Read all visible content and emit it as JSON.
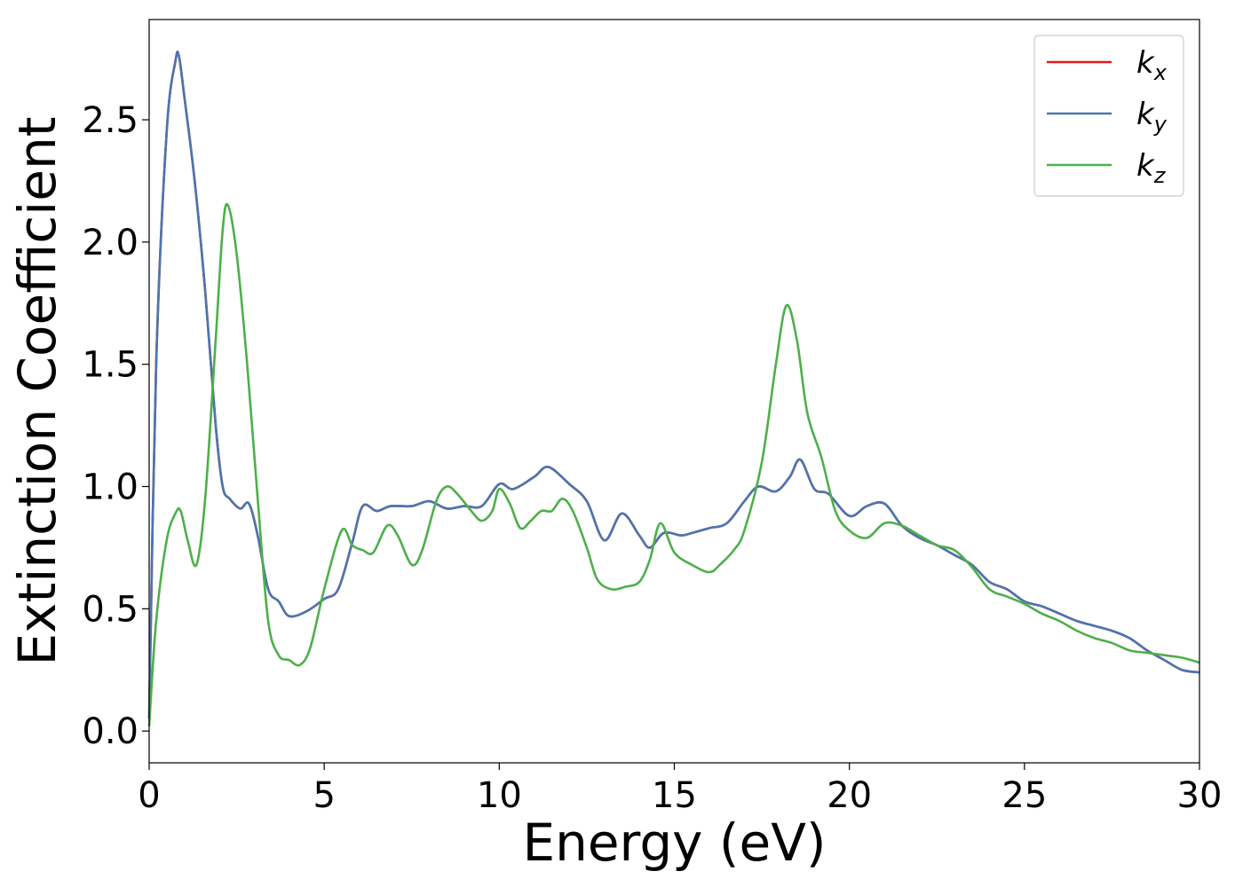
{
  "chart_data": {
    "type": "line",
    "xlabel": "Energy (eV)",
    "ylabel": "Extinction Coefficient",
    "xlim": [
      0,
      30
    ],
    "ylim": [
      -0.13,
      2.91
    ],
    "xticks": [
      0,
      5,
      10,
      15,
      20,
      25,
      30
    ],
    "xtick_labels": [
      "0",
      "5",
      "10",
      "15",
      "20",
      "25",
      "30"
    ],
    "yticks": [
      0.0,
      0.5,
      1.0,
      1.5,
      2.0,
      2.5
    ],
    "ytick_labels": [
      "0.0",
      "0.5",
      "1.0",
      "1.5",
      "2.0",
      "2.5"
    ],
    "grid": false,
    "legend_position": "top-right",
    "series": [
      {
        "name": "k_x",
        "label_main": "k",
        "label_sub": "x",
        "color": "#e41a1c",
        "points": [
          [
            0,
            0.05
          ],
          [
            0.2,
            1.5
          ],
          [
            0.5,
            2.45
          ],
          [
            0.75,
            2.74
          ],
          [
            0.85,
            2.76
          ],
          [
            1.0,
            2.6
          ],
          [
            1.3,
            2.25
          ],
          [
            1.6,
            1.8
          ],
          [
            1.9,
            1.25
          ],
          [
            2.1,
            1.0
          ],
          [
            2.3,
            0.95
          ],
          [
            2.6,
            0.91
          ],
          [
            2.85,
            0.93
          ],
          [
            3.1,
            0.8
          ],
          [
            3.4,
            0.58
          ],
          [
            3.7,
            0.53
          ],
          [
            4.0,
            0.47
          ],
          [
            4.5,
            0.49
          ],
          [
            5.0,
            0.54
          ],
          [
            5.4,
            0.58
          ],
          [
            5.8,
            0.77
          ],
          [
            6.1,
            0.92
          ],
          [
            6.5,
            0.9
          ],
          [
            6.9,
            0.92
          ],
          [
            7.5,
            0.92
          ],
          [
            8.0,
            0.94
          ],
          [
            8.5,
            0.91
          ],
          [
            9.0,
            0.92
          ],
          [
            9.5,
            0.92
          ],
          [
            10.0,
            1.01
          ],
          [
            10.4,
            0.99
          ],
          [
            11.0,
            1.04
          ],
          [
            11.4,
            1.08
          ],
          [
            12.0,
            1.01
          ],
          [
            12.5,
            0.94
          ],
          [
            13.0,
            0.78
          ],
          [
            13.5,
            0.89
          ],
          [
            14.0,
            0.8
          ],
          [
            14.3,
            0.75
          ],
          [
            14.7,
            0.81
          ],
          [
            15.2,
            0.8
          ],
          [
            15.5,
            0.81
          ],
          [
            16.0,
            0.83
          ],
          [
            16.5,
            0.85
          ],
          [
            17.0,
            0.94
          ],
          [
            17.4,
            1.0
          ],
          [
            17.9,
            0.98
          ],
          [
            18.3,
            1.04
          ],
          [
            18.6,
            1.11
          ],
          [
            19.0,
            0.99
          ],
          [
            19.4,
            0.97
          ],
          [
            20.0,
            0.88
          ],
          [
            20.5,
            0.92
          ],
          [
            21.0,
            0.93
          ],
          [
            21.5,
            0.84
          ],
          [
            22.0,
            0.79
          ],
          [
            22.5,
            0.76
          ],
          [
            23.0,
            0.72
          ],
          [
            23.5,
            0.68
          ],
          [
            24.0,
            0.61
          ],
          [
            24.5,
            0.58
          ],
          [
            25.0,
            0.53
          ],
          [
            25.5,
            0.51
          ],
          [
            26.0,
            0.48
          ],
          [
            26.5,
            0.45
          ],
          [
            27.0,
            0.43
          ],
          [
            27.5,
            0.41
          ],
          [
            28.0,
            0.38
          ],
          [
            28.5,
            0.33
          ],
          [
            29.0,
            0.29
          ],
          [
            29.5,
            0.25
          ],
          [
            30.0,
            0.24
          ]
        ]
      },
      {
        "name": "k_y",
        "label_main": "k",
        "label_sub": "y",
        "color": "#4a76b0",
        "points": [
          [
            0,
            0.05
          ],
          [
            0.2,
            1.5
          ],
          [
            0.5,
            2.45
          ],
          [
            0.75,
            2.74
          ],
          [
            0.85,
            2.76
          ],
          [
            1.0,
            2.6
          ],
          [
            1.3,
            2.25
          ],
          [
            1.6,
            1.8
          ],
          [
            1.9,
            1.25
          ],
          [
            2.1,
            1.0
          ],
          [
            2.3,
            0.95
          ],
          [
            2.6,
            0.91
          ],
          [
            2.85,
            0.93
          ],
          [
            3.1,
            0.8
          ],
          [
            3.4,
            0.58
          ],
          [
            3.7,
            0.53
          ],
          [
            4.0,
            0.47
          ],
          [
            4.5,
            0.49
          ],
          [
            5.0,
            0.54
          ],
          [
            5.4,
            0.58
          ],
          [
            5.8,
            0.77
          ],
          [
            6.1,
            0.92
          ],
          [
            6.5,
            0.9
          ],
          [
            6.9,
            0.92
          ],
          [
            7.5,
            0.92
          ],
          [
            8.0,
            0.94
          ],
          [
            8.5,
            0.91
          ],
          [
            9.0,
            0.92
          ],
          [
            9.5,
            0.92
          ],
          [
            10.0,
            1.01
          ],
          [
            10.4,
            0.99
          ],
          [
            11.0,
            1.04
          ],
          [
            11.4,
            1.08
          ],
          [
            12.0,
            1.01
          ],
          [
            12.5,
            0.94
          ],
          [
            13.0,
            0.78
          ],
          [
            13.5,
            0.89
          ],
          [
            14.0,
            0.8
          ],
          [
            14.3,
            0.75
          ],
          [
            14.7,
            0.81
          ],
          [
            15.2,
            0.8
          ],
          [
            15.5,
            0.81
          ],
          [
            16.0,
            0.83
          ],
          [
            16.5,
            0.85
          ],
          [
            17.0,
            0.94
          ],
          [
            17.4,
            1.0
          ],
          [
            17.9,
            0.98
          ],
          [
            18.3,
            1.04
          ],
          [
            18.6,
            1.11
          ],
          [
            19.0,
            0.99
          ],
          [
            19.4,
            0.97
          ],
          [
            20.0,
            0.88
          ],
          [
            20.5,
            0.92
          ],
          [
            21.0,
            0.93
          ],
          [
            21.5,
            0.84
          ],
          [
            22.0,
            0.79
          ],
          [
            22.5,
            0.76
          ],
          [
            23.0,
            0.72
          ],
          [
            23.5,
            0.68
          ],
          [
            24.0,
            0.61
          ],
          [
            24.5,
            0.58
          ],
          [
            25.0,
            0.53
          ],
          [
            25.5,
            0.51
          ],
          [
            26.0,
            0.48
          ],
          [
            26.5,
            0.45
          ],
          [
            27.0,
            0.43
          ],
          [
            27.5,
            0.41
          ],
          [
            28.0,
            0.38
          ],
          [
            28.5,
            0.33
          ],
          [
            29.0,
            0.29
          ],
          [
            29.5,
            0.25
          ],
          [
            30.0,
            0.24
          ]
        ]
      },
      {
        "name": "k_z",
        "label_main": "k",
        "label_sub": "z",
        "color": "#4daf4a",
        "points": [
          [
            0,
            0.02
          ],
          [
            0.2,
            0.45
          ],
          [
            0.5,
            0.78
          ],
          [
            0.75,
            0.89
          ],
          [
            0.9,
            0.9
          ],
          [
            1.1,
            0.78
          ],
          [
            1.35,
            0.68
          ],
          [
            1.6,
            0.95
          ],
          [
            1.9,
            1.6
          ],
          [
            2.1,
            2.05
          ],
          [
            2.25,
            2.15
          ],
          [
            2.5,
            1.95
          ],
          [
            2.8,
            1.5
          ],
          [
            3.1,
            0.95
          ],
          [
            3.4,
            0.45
          ],
          [
            3.7,
            0.31
          ],
          [
            4.0,
            0.29
          ],
          [
            4.3,
            0.27
          ],
          [
            4.6,
            0.34
          ],
          [
            5.0,
            0.58
          ],
          [
            5.5,
            0.82
          ],
          [
            5.8,
            0.76
          ],
          [
            6.1,
            0.74
          ],
          [
            6.4,
            0.73
          ],
          [
            6.8,
            0.84
          ],
          [
            7.1,
            0.8
          ],
          [
            7.5,
            0.68
          ],
          [
            7.8,
            0.74
          ],
          [
            8.2,
            0.94
          ],
          [
            8.5,
            1.0
          ],
          [
            8.8,
            0.97
          ],
          [
            9.2,
            0.9
          ],
          [
            9.5,
            0.86
          ],
          [
            9.8,
            0.9
          ],
          [
            10.0,
            0.99
          ],
          [
            10.3,
            0.93
          ],
          [
            10.6,
            0.83
          ],
          [
            10.9,
            0.86
          ],
          [
            11.2,
            0.9
          ],
          [
            11.5,
            0.9
          ],
          [
            11.8,
            0.95
          ],
          [
            12.1,
            0.9
          ],
          [
            12.5,
            0.75
          ],
          [
            12.8,
            0.62
          ],
          [
            13.2,
            0.58
          ],
          [
            13.6,
            0.59
          ],
          [
            14.0,
            0.61
          ],
          [
            14.3,
            0.7
          ],
          [
            14.6,
            0.85
          ],
          [
            15.0,
            0.73
          ],
          [
            15.5,
            0.68
          ],
          [
            16.0,
            0.65
          ],
          [
            16.3,
            0.68
          ],
          [
            16.7,
            0.74
          ],
          [
            17.0,
            0.82
          ],
          [
            17.5,
            1.1
          ],
          [
            17.9,
            1.5
          ],
          [
            18.2,
            1.74
          ],
          [
            18.5,
            1.6
          ],
          [
            18.8,
            1.3
          ],
          [
            19.2,
            1.12
          ],
          [
            19.6,
            0.9
          ],
          [
            20.0,
            0.82
          ],
          [
            20.5,
            0.79
          ],
          [
            21.0,
            0.85
          ],
          [
            21.5,
            0.84
          ],
          [
            22.0,
            0.8
          ],
          [
            22.5,
            0.76
          ],
          [
            23.0,
            0.74
          ],
          [
            23.5,
            0.67
          ],
          [
            24.0,
            0.58
          ],
          [
            24.5,
            0.55
          ],
          [
            25.0,
            0.52
          ],
          [
            25.5,
            0.48
          ],
          [
            26.0,
            0.45
          ],
          [
            26.5,
            0.41
          ],
          [
            27.0,
            0.38
          ],
          [
            27.5,
            0.36
          ],
          [
            28.0,
            0.33
          ],
          [
            28.5,
            0.32
          ],
          [
            29.0,
            0.31
          ],
          [
            29.5,
            0.3
          ],
          [
            30.0,
            0.28
          ]
        ]
      }
    ]
  }
}
